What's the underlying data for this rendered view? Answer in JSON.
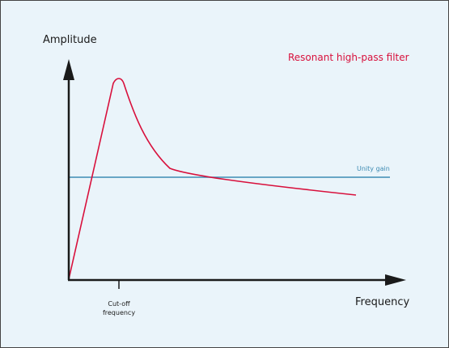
{
  "diagram": {
    "title": "Resonant high-pass filter",
    "y_axis_label": "Amplitude",
    "x_axis_label": "Frequency",
    "reference_line_label": "Unity gain",
    "cutoff_label_line1": "Cut-off",
    "cutoff_label_line2": "frequency"
  },
  "colors": {
    "background": "#eaf4fa",
    "axes": "#1a1a1a",
    "response_curve": "#d8103c",
    "unity_gain_line": "#3d8bb3",
    "title_text": "#d8103c",
    "unity_gain_text": "#3d8bb3",
    "axis_text": "#1a1a1a"
  }
}
